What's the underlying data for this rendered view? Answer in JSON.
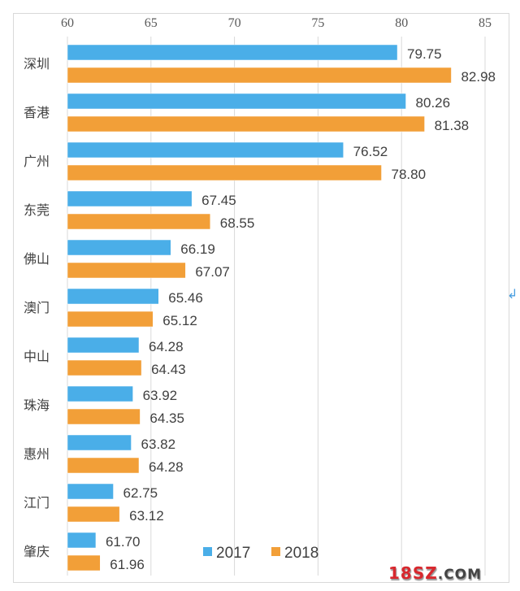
{
  "chart_data": {
    "type": "bar",
    "orientation": "horizontal",
    "categories": [
      "深圳",
      "香港",
      "广州",
      "东莞",
      "佛山",
      "澳门",
      "中山",
      "珠海",
      "惠州",
      "江门",
      "肇庆"
    ],
    "series": [
      {
        "name": "2017",
        "color": "#4aaee8",
        "values": [
          79.75,
          80.26,
          76.52,
          67.45,
          66.19,
          65.46,
          64.28,
          63.92,
          63.82,
          62.75,
          61.7
        ]
      },
      {
        "name": "2018",
        "color": "#f29f38",
        "values": [
          82.98,
          81.38,
          78.8,
          68.55,
          67.07,
          65.12,
          64.43,
          64.35,
          64.28,
          63.12,
          61.96
        ]
      }
    ],
    "value_labels": {
      "2017": [
        "79.75",
        "80.26",
        "76.52",
        "67.45",
        "66.19",
        "65.46",
        "64.28",
        "63.92",
        "63.82",
        "62.75",
        "61.70"
      ],
      "2018": [
        "82.98",
        "81.38",
        "78.80",
        "68.55",
        "67.07",
        "65.12",
        "64.43",
        "64.35",
        "64.28",
        "63.12",
        "61.96"
      ]
    },
    "xticks": [
      "60",
      "65",
      "70",
      "75",
      "80",
      "85"
    ],
    "xlim": [
      60,
      85
    ],
    "axis_position": "top",
    "grid": true,
    "legend": "bottom-center",
    "title": "",
    "xlabel": "",
    "ylabel": ""
  },
  "decor": {
    "paragraph_mark": "↲",
    "watermark_main": "18SZ",
    "watermark_suffix": ".COM"
  }
}
